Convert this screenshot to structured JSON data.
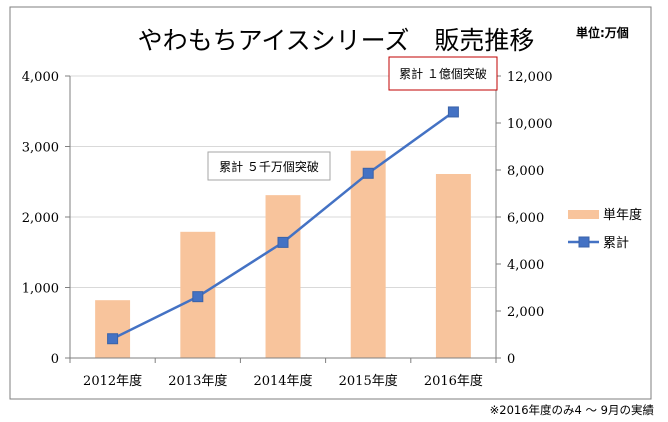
{
  "chart_data": {
    "type": "bar",
    "title": "やわもちアイスシリーズ　販売推移",
    "unit_label": "単位:万個",
    "categories": [
      "2012年度",
      "2013年度",
      "2014年度",
      "2015年度",
      "2016年度"
    ],
    "series": [
      {
        "name": "単年度",
        "type": "bar",
        "axis": "left",
        "color": "#f8c49c",
        "values": [
          820,
          1790,
          2310,
          2940,
          2610
        ]
      },
      {
        "name": "累計",
        "type": "line",
        "axis": "right",
        "color": "#4472c4",
        "marker": "square",
        "values": [
          820,
          2610,
          4920,
          7860,
          10470
        ]
      }
    ],
    "y_left": {
      "min": 0,
      "max": 4000,
      "ticks": [
        0,
        1000,
        2000,
        3000,
        4000
      ],
      "tick_labels": [
        "0",
        "1,000",
        "2,000",
        "3,000",
        "4,000"
      ]
    },
    "y_right": {
      "min": 0,
      "max": 12000,
      "ticks": [
        0,
        2000,
        4000,
        6000,
        8000,
        10000,
        12000
      ],
      "tick_labels": [
        "0",
        "2,000",
        "4,000",
        "6,000",
        "8,000",
        "10,000",
        "12,000"
      ]
    },
    "grid": true,
    "legend_position": "right",
    "annotations": [
      {
        "text": "累計 ５千万個突破",
        "border_color": "#a6a6a6"
      },
      {
        "text": "累計 １億個突破",
        "border_color": "#c00000"
      }
    ],
    "footnote": "※2016年度のみ4 ～ 9月の実績"
  }
}
